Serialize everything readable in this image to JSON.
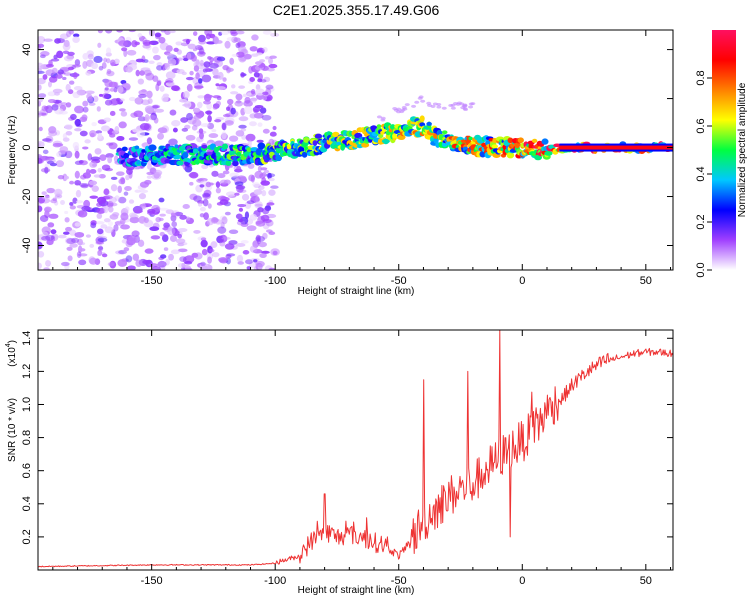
{
  "title": "C2E1.2025.355.17.49.G06",
  "chart_data": [
    {
      "type": "heatmap",
      "name": "spectrogram",
      "xlabel": "Height of straight line (km)",
      "ylabel": "Frequency (Hz)",
      "xlim": [
        -196,
        61
      ],
      "ylim": [
        -50,
        48
      ],
      "xticks": [
        -150,
        -100,
        -50,
        0,
        50
      ],
      "xtick_labels": [
        "-150",
        "-100",
        "-50",
        "0",
        "50"
      ],
      "yticks": [
        40,
        20,
        0,
        -20,
        -40
      ],
      "ytick_labels": [
        "40",
        "20",
        "0",
        "-20",
        "-40"
      ],
      "colorbar": {
        "label": "Normalized spectral amplitude",
        "range": [
          0,
          1
        ],
        "ticks": [
          0.0,
          0.2,
          0.4,
          0.6,
          0.8
        ],
        "tick_labels": [
          "0.0",
          "0.2",
          "0.4",
          "0.6",
          "0.8"
        ],
        "colors": [
          "#ffffff",
          "#a040ff",
          "#0000ff",
          "#00c8ff",
          "#00ff40",
          "#ffff00",
          "#ff8000",
          "#ff0000",
          "#ff1060"
        ]
      },
      "ridge": {
        "x": [
          -163,
          -150,
          -140,
          -120,
          -110,
          -100,
          -90,
          -80,
          -70,
          -60,
          -50,
          -40,
          -36,
          -30,
          -25,
          -20,
          -10,
          0,
          10,
          20,
          61
        ],
        "y": [
          -4,
          -3,
          -3,
          -3,
          -3,
          -2,
          0,
          2,
          3,
          5,
          7,
          9,
          5,
          3,
          2,
          1,
          0,
          0,
          -1,
          0,
          0
        ]
      }
    },
    {
      "type": "line",
      "name": "snr",
      "xlabel": "Height of straight line (km)",
      "ylabel": "SNR (10 * v/v)",
      "scale_note": "(x10",
      "scale_exp": "4",
      "line_color": "#ee3333",
      "xlim": [
        -196,
        61
      ],
      "ylim": [
        0,
        14500
      ],
      "xticks": [
        -150,
        -100,
        -50,
        0,
        50
      ],
      "xtick_labels": [
        "-150",
        "-100",
        "-50",
        "0",
        "50"
      ],
      "yticks": [
        2000,
        4000,
        6000,
        8000,
        10000,
        12000,
        14000
      ],
      "ytick_labels": [
        "0.2",
        "0.4",
        "0.6",
        "0.8",
        "1.0",
        "1.2",
        "1.4"
      ],
      "trend": {
        "x": [
          -196,
          -150,
          -110,
          -100,
          -95,
          -90,
          -85,
          -80,
          -75,
          -70,
          -65,
          -60,
          -55,
          -50,
          -45,
          -40,
          -35,
          -30,
          -25,
          -20,
          -15,
          -10,
          -5,
          0,
          5,
          10,
          15,
          20,
          25,
          30,
          35,
          40,
          45,
          50,
          55,
          61
        ],
        "y": [
          200,
          300,
          300,
          400,
          600,
          800,
          1600,
          2200,
          1800,
          2000,
          1800,
          1500,
          1300,
          800,
          1500,
          2500,
          3300,
          4000,
          4500,
          4800,
          5600,
          6300,
          6900,
          7400,
          8100,
          9200,
          10000,
          11000,
          11700,
          12200,
          12600,
          12800,
          13000,
          13100,
          13100,
          13000
        ]
      },
      "peaks": [
        {
          "x": -9,
          "y": 14500
        },
        {
          "x": -22,
          "y": 12000
        },
        {
          "x": -40,
          "y": 11500
        },
        {
          "x": -80,
          "y": 4600
        },
        {
          "x": -5,
          "y": 2000
        }
      ]
    }
  ]
}
